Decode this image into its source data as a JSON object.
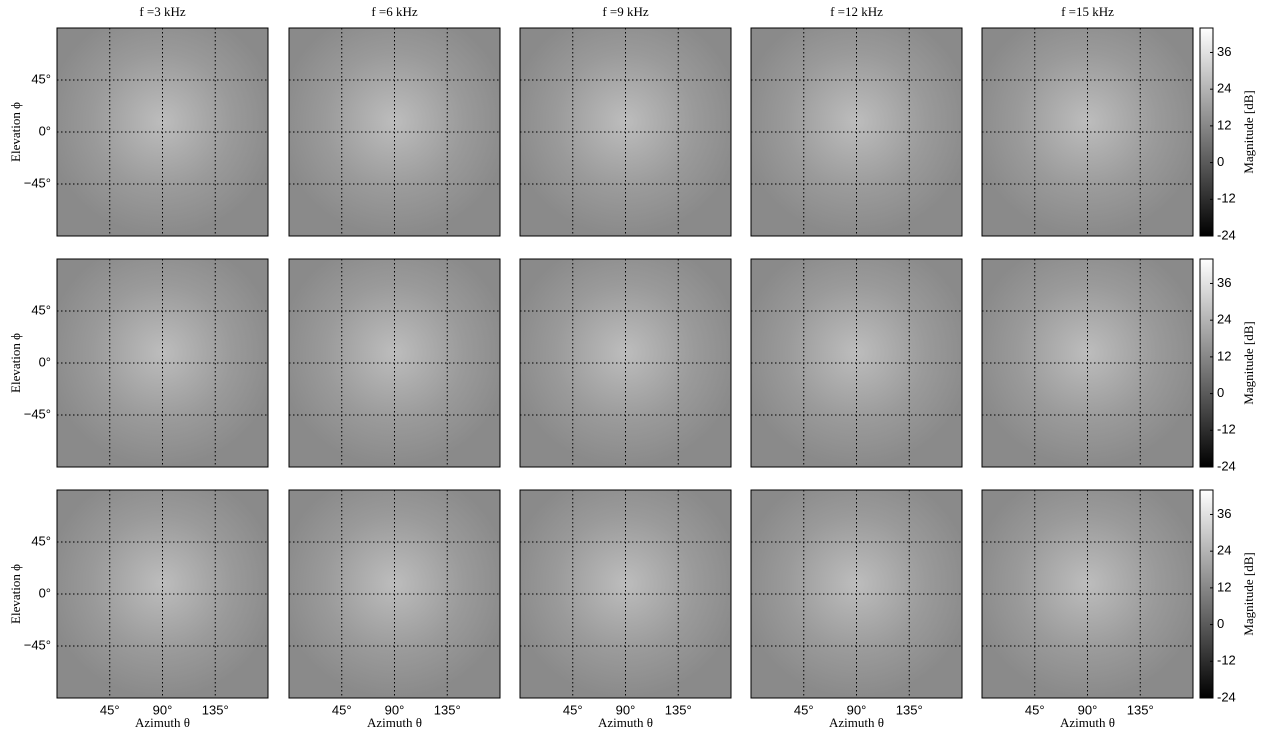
{
  "chart_data": {
    "type": "heatmap",
    "titles": [
      "f =3 kHz",
      "f =6 kHz",
      "f =9 kHz",
      "f =12 kHz",
      "f =15 kHz"
    ],
    "rows": 3,
    "xlabel": "Azimuth θ",
    "ylabel": "Elevation ϕ",
    "xlim": [
      0,
      180
    ],
    "ylim": [
      -90,
      90
    ],
    "xticks": [
      {
        "value": 45,
        "label": "45°"
      },
      {
        "value": 90,
        "label": "90°"
      },
      {
        "value": 135,
        "label": "135°"
      }
    ],
    "yticks": [
      {
        "value": 45,
        "label": "45°"
      },
      {
        "value": 0,
        "label": "0°"
      },
      {
        "value": -45,
        "label": "−45°"
      }
    ],
    "grid": true,
    "colorbar": {
      "label": "Magnitude [dB]",
      "lim": [
        -24,
        44
      ],
      "ticks": [
        36,
        24,
        12,
        0,
        -12,
        -24
      ],
      "colors": [
        "#000000",
        "#ffffff"
      ]
    }
  }
}
